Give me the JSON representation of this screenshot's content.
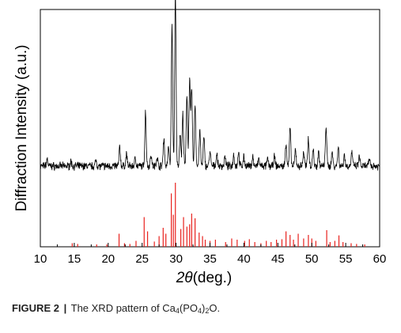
{
  "chart_data": {
    "type": "line",
    "xlabel_symbol": "2θ",
    "xlabel_unit": "(deg.)",
    "ylabel": "Diffraction Intensity (a.u.)",
    "xlim": [
      10,
      60
    ],
    "x_ticks": [
      10,
      15,
      20,
      25,
      30,
      35,
      40,
      45,
      50,
      55,
      60
    ],
    "ylim_arbitrary": [
      0,
      100
    ],
    "y_ticks_shown": false,
    "grid": false,
    "series": [
      {
        "style": "line",
        "color": "#000000",
        "baseline": 34,
        "noise": 1.3,
        "peaks": [
          [
            11.0,
            3
          ],
          [
            14.5,
            2
          ],
          [
            18.2,
            2.5
          ],
          [
            21.7,
            8
          ],
          [
            22.7,
            5
          ],
          [
            24.0,
            3.5
          ],
          [
            25.5,
            23
          ],
          [
            26.3,
            5
          ],
          [
            27.2,
            4
          ],
          [
            28.2,
            12
          ],
          [
            28.9,
            8
          ],
          [
            29.4,
            59
          ],
          [
            29.9,
            72
          ],
          [
            30.6,
            14
          ],
          [
            31.0,
            22
          ],
          [
            31.6,
            30
          ],
          [
            32.0,
            36
          ],
          [
            32.3,
            33
          ],
          [
            32.8,
            26
          ],
          [
            33.5,
            15
          ],
          [
            34.1,
            12
          ],
          [
            35.0,
            6
          ],
          [
            36.0,
            5
          ],
          [
            37.2,
            4
          ],
          [
            38.5,
            5
          ],
          [
            39.2,
            6
          ],
          [
            40.0,
            4
          ],
          [
            41.3,
            4
          ],
          [
            42.2,
            3
          ],
          [
            43.5,
            3
          ],
          [
            44.5,
            4
          ],
          [
            46.2,
            10
          ],
          [
            46.8,
            16
          ],
          [
            47.6,
            7
          ],
          [
            48.8,
            6
          ],
          [
            49.5,
            12
          ],
          [
            50.2,
            7
          ],
          [
            51.0,
            6
          ],
          [
            52.1,
            17
          ],
          [
            53.0,
            6
          ],
          [
            53.9,
            8
          ],
          [
            54.8,
            5
          ],
          [
            55.9,
            6
          ],
          [
            57.0,
            4
          ],
          [
            58.5,
            3
          ]
        ]
      },
      {
        "style": "sticks",
        "color": "#e8211d",
        "sticks": [
          [
            14.7,
            1.5
          ],
          [
            15.5,
            1.2
          ],
          [
            18.3,
            1.0
          ],
          [
            19.8,
            1.0
          ],
          [
            21.6,
            5.5
          ],
          [
            22.4,
            1.5
          ],
          [
            23.2,
            1.2
          ],
          [
            24.1,
            2.5
          ],
          [
            25.3,
            12.5
          ],
          [
            25.8,
            6.5
          ],
          [
            26.8,
            2.2
          ],
          [
            27.5,
            4.5
          ],
          [
            28.1,
            8
          ],
          [
            28.5,
            5.5
          ],
          [
            29.3,
            22.5
          ],
          [
            29.6,
            13.5
          ],
          [
            29.9,
            27
          ],
          [
            30.7,
            7.5
          ],
          [
            31.1,
            12.5
          ],
          [
            31.6,
            8.5
          ],
          [
            32.0,
            9.5
          ],
          [
            32.3,
            14
          ],
          [
            32.8,
            12
          ],
          [
            33.4,
            6
          ],
          [
            33.9,
            4.5
          ],
          [
            34.3,
            3
          ],
          [
            35.0,
            2.5
          ],
          [
            35.8,
            3
          ],
          [
            37.3,
            2
          ],
          [
            38.2,
            3.5
          ],
          [
            39.0,
            3
          ],
          [
            40.1,
            2.5
          ],
          [
            40.8,
            3.2
          ],
          [
            41.6,
            2
          ],
          [
            42.5,
            1.5
          ],
          [
            43.3,
            2.5
          ],
          [
            44.0,
            2
          ],
          [
            44.8,
            3
          ],
          [
            45.6,
            3.2
          ],
          [
            46.2,
            6.5
          ],
          [
            46.8,
            5
          ],
          [
            47.3,
            3
          ],
          [
            48.0,
            5.5
          ],
          [
            48.8,
            3.5
          ],
          [
            49.5,
            5
          ],
          [
            50.0,
            3.5
          ],
          [
            50.6,
            2.5
          ],
          [
            52.2,
            7
          ],
          [
            52.7,
            2
          ],
          [
            53.4,
            2.5
          ],
          [
            54.0,
            4.8
          ],
          [
            54.6,
            2
          ],
          [
            55.8,
            1.5
          ],
          [
            56.6,
            1.2
          ],
          [
            57.8,
            1
          ]
        ]
      }
    ]
  },
  "caption": {
    "label": "FIGURE 2",
    "separator": "|",
    "text_before": "The XRD pattern of Ca",
    "sub1": "4",
    "text_mid": "(PO",
    "sub2": "4",
    "text_mid2": ")",
    "sub3": "2",
    "text_after": "O."
  }
}
